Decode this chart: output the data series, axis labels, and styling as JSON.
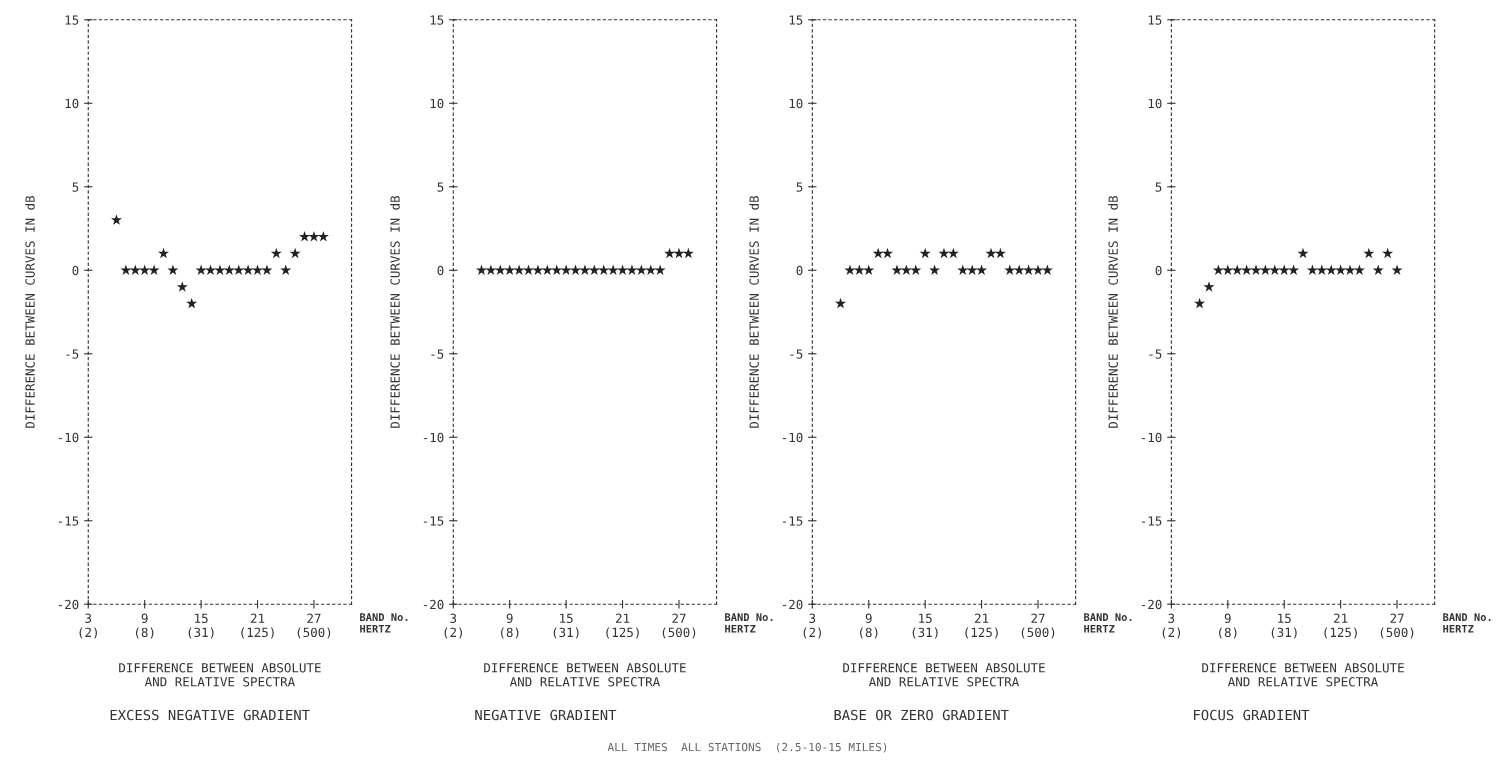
{
  "chart_data": [
    {
      "type": "scatter",
      "subtitle": "DIFFERENCE BETWEEN ABSOLUTE\nAND RELATIVE SPECTRA",
      "title": "EXCESS NEGATIVE GRADIENT",
      "ylabel": "DIFFERENCE BETWEEN CURVES IN dB",
      "xlabel": "BAND No.\nHERTZ",
      "categories": [
        "3\n(2)",
        null,
        null,
        null,
        null,
        null,
        "9\n(8)",
        null,
        null,
        null,
        null,
        null,
        "15\n(31)",
        null,
        null,
        null,
        null,
        null,
        "21\n(125)",
        null,
        null,
        null,
        null,
        null,
        "27\n(500)",
        null,
        null,
        null,
        null
      ],
      "ylim": [
        -20,
        15
      ],
      "yticks": [
        -20,
        -15,
        -10,
        -5,
        0,
        5,
        10,
        15
      ],
      "marker": "star",
      "color": "#222222",
      "annotations": [
        "ALL TIMES  ALL STATIONS  (2.5-10-15 MILES)"
      ],
      "values": [
        null,
        null,
        null,
        3,
        0,
        0,
        0,
        0,
        1,
        0,
        -1,
        -2,
        0,
        0,
        0,
        0,
        0,
        0,
        0,
        0,
        1,
        0,
        1,
        2,
        2,
        2,
        null,
        null,
        null
      ]
    },
    {
      "type": "scatter",
      "subtitle": "DIFFERENCE BETWEEN ABSOLUTE\nAND RELATIVE SPECTRA",
      "title": "NEGATIVE GRADIENT",
      "ylabel": "DIFFERENCE BETWEEN CURVES IN dB",
      "xlabel": "BAND No.\nHERTZ",
      "categories": [
        "3\n(2)",
        null,
        null,
        null,
        null,
        null,
        "9\n(8)",
        null,
        null,
        null,
        null,
        null,
        "15\n(31)",
        null,
        null,
        null,
        null,
        null,
        "21\n(125)",
        null,
        null,
        null,
        null,
        null,
        "27\n(500)",
        null,
        null,
        null,
        null
      ],
      "ylim": [
        -20,
        15
      ],
      "yticks": [
        -20,
        -15,
        -10,
        -5,
        0,
        5,
        10,
        15
      ],
      "marker": "star",
      "color": "#222222",
      "values": [
        null,
        null,
        null,
        0,
        0,
        0,
        0,
        0,
        0,
        0,
        0,
        0,
        0,
        0,
        0,
        0,
        0,
        0,
        0,
        0,
        0,
        0,
        0,
        1,
        1,
        1,
        null,
        null,
        null
      ]
    },
    {
      "type": "scatter",
      "subtitle": "DIFFERENCE BETWEEN ABSOLUTE\nAND RELATIVE SPECTRA",
      "title": "BASE OR ZERO GRADIENT",
      "ylabel": "DIFFERENCE BETWEEN CURVES IN dB",
      "xlabel": "BAND No.\nHERTZ",
      "categories": [
        "3\n(2)",
        null,
        null,
        null,
        null,
        null,
        "9\n(8)",
        null,
        null,
        null,
        null,
        null,
        "15\n(31)",
        null,
        null,
        null,
        null,
        null,
        "21\n(125)",
        null,
        null,
        null,
        null,
        null,
        "27\n(500)",
        null,
        null,
        null,
        null
      ],
      "ylim": [
        -20,
        15
      ],
      "yticks": [
        -20,
        -15,
        -10,
        -5,
        0,
        5,
        10,
        15
      ],
      "marker": "star",
      "color": "#222222",
      "values": [
        null,
        null,
        null,
        -2,
        0,
        0,
        0,
        1,
        1,
        0,
        0,
        0,
        1,
        0,
        1,
        1,
        0,
        0,
        0,
        1,
        1,
        0,
        0,
        0,
        0,
        0,
        null,
        null,
        null
      ]
    },
    {
      "type": "scatter",
      "subtitle": "DIFFERENCE BETWEEN ABSOLUTE\nAND RELATIVE SPECTRA",
      "title": "FOCUS GRADIENT",
      "ylabel": "DIFFERENCE BETWEEN CURVES IN dB",
      "xlabel": "BAND No.\nHERTZ",
      "categories": [
        "3\n(2)",
        null,
        null,
        null,
        null,
        null,
        "9\n(8)",
        null,
        null,
        null,
        null,
        null,
        "15\n(31)",
        null,
        null,
        null,
        null,
        null,
        "21\n(125)",
        null,
        null,
        null,
        null,
        null,
        "27\n(500)",
        null,
        null,
        null,
        null
      ],
      "ylim": [
        -20,
        15
      ],
      "yticks": [
        -20,
        -15,
        -10,
        -5,
        0,
        5,
        10,
        15
      ],
      "marker": "star",
      "color": "#222222",
      "values": [
        null,
        null,
        null,
        -2,
        -1,
        0,
        0,
        0,
        0,
        0,
        0,
        0,
        0,
        0,
        1,
        0,
        0,
        0,
        0,
        0,
        0,
        1,
        0,
        1,
        0,
        null,
        null,
        null,
        null
      ]
    }
  ]
}
